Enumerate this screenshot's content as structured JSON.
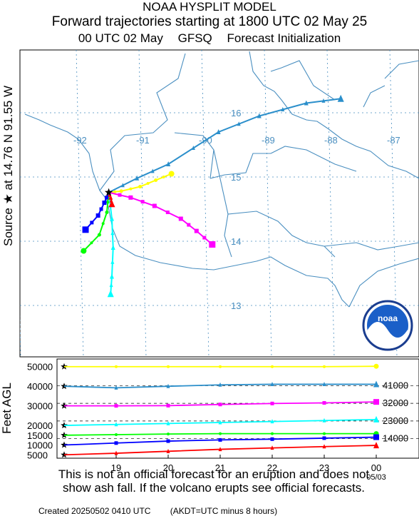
{
  "header": {
    "model_title": "NOAA HYSPLIT MODEL",
    "trajectory_title": "Forward trajectories starting at 1800 UTC 02 May 25",
    "init_time": "00 UTC 02 May",
    "met_model": "GFSQ",
    "init_type": "Forecast Initialization"
  },
  "source_label": "Source ★ at 14.76 N 91.55 W",
  "map": {
    "lon_labels": [
      "-92",
      "-91",
      "-90",
      "-89",
      "-88",
      "-87"
    ],
    "lat_labels": [
      "16",
      "15",
      "14",
      "13"
    ],
    "source": {
      "lat": 14.76,
      "lon": -91.55
    },
    "logo_text": "noaa"
  },
  "chart_data": {
    "type": "line",
    "ylabel": "Feet AGL",
    "x_ticks": [
      "19",
      "20",
      "21",
      "22",
      "23",
      "00"
    ],
    "x_tick_sub": "05/03",
    "y_ticks": [
      50000,
      40000,
      30000,
      20000,
      15000,
      10000,
      5000
    ],
    "right_labels": [
      "41000",
      "32000",
      "23000",
      "14000"
    ],
    "series": [
      {
        "color": "#ffff00",
        "marker": "circle",
        "start_ft": 50000,
        "heights_ft": [
          50000,
          50000,
          50000,
          50000,
          50000,
          50000,
          50200
        ],
        "lonlat": [
          [
            -91.55,
            14.76
          ],
          [
            -91.35,
            14.78
          ],
          [
            -91.05,
            14.85
          ],
          [
            -90.8,
            14.95
          ],
          [
            -90.55,
            15.05
          ]
        ]
      },
      {
        "color": "#2b8fcb",
        "marker": "triangle",
        "start_ft": 40000,
        "heights_ft": [
          40000,
          39200,
          40000,
          40700,
          41000,
          41000,
          41000
        ],
        "lonlat": [
          [
            -91.55,
            14.76
          ],
          [
            -91.1,
            14.98
          ],
          [
            -90.6,
            15.2
          ],
          [
            -89.8,
            15.7
          ],
          [
            -89.15,
            15.95
          ],
          [
            -88.4,
            16.15
          ],
          [
            -87.85,
            16.22
          ]
        ]
      },
      {
        "color": "#ff00ff",
        "marker": "square",
        "start_ft": 30000,
        "heights_ft": [
          30000,
          30000,
          30100,
          30700,
          31200,
          31500,
          32000
        ],
        "lonlat": [
          [
            -91.55,
            14.76
          ],
          [
            -91.2,
            14.68
          ],
          [
            -90.82,
            14.55
          ],
          [
            -90.4,
            14.35
          ],
          [
            -90.15,
            14.16
          ],
          [
            -89.9,
            13.95
          ]
        ]
      },
      {
        "color": "#00ffff",
        "marker": "triangle",
        "start_ft": 20000,
        "heights_ft": [
          20000,
          20500,
          21000,
          21500,
          22000,
          22500,
          23000
        ],
        "lonlat": [
          [
            -91.55,
            14.76
          ],
          [
            -91.5,
            14.35
          ],
          [
            -91.48,
            13.9
          ],
          [
            -91.5,
            13.45
          ],
          [
            -91.52,
            13.18
          ]
        ]
      },
      {
        "color": "#00ff00",
        "marker": "circle",
        "start_ft": 15000,
        "heights_ft": [
          15000,
          15300,
          15600,
          15800,
          15800,
          15800,
          15800
        ],
        "lonlat": [
          [
            -91.55,
            14.76
          ],
          [
            -91.58,
            14.45
          ],
          [
            -91.7,
            14.1
          ],
          [
            -91.95,
            13.85
          ]
        ]
      },
      {
        "color": "#0000ff",
        "marker": "square",
        "start_ft": 10000,
        "heights_ft": [
          10000,
          11000,
          12000,
          12600,
          13000,
          13500,
          14000
        ],
        "lonlat": [
          [
            -91.55,
            14.76
          ],
          [
            -91.62,
            14.6
          ],
          [
            -91.72,
            14.4
          ],
          [
            -91.92,
            14.18
          ]
        ]
      },
      {
        "color": "#ff0000",
        "marker": "triangle",
        "start_ft": 5000,
        "heights_ft": [
          5000,
          5800,
          6800,
          7800,
          8500,
          9200,
          9800
        ],
        "lonlat": [
          [
            -91.55,
            14.76
          ],
          [
            -91.52,
            14.68
          ],
          [
            -91.5,
            14.58
          ]
        ]
      }
    ]
  },
  "disclaimer": {
    "line1": "This is not an official forecast for an eruption and does not",
    "line2": "show ash fall. If the volcano erupts see official forecasts."
  },
  "footer": {
    "created": "Created 20250502 0410 UTC",
    "tz_note": "(AKDT=UTC minus 8 hours)"
  },
  "colors": {
    "border": "#4a8fc0",
    "grid": "#4a8fc0",
    "coast": "#4a8fc0"
  }
}
